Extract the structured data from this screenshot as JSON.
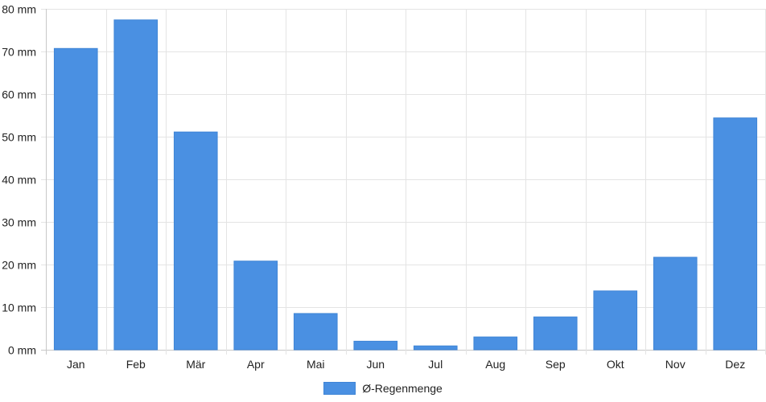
{
  "chart_data": {
    "type": "bar",
    "categories": [
      "Jan",
      "Feb",
      "Mär",
      "Apr",
      "Mai",
      "Jun",
      "Jul",
      "Aug",
      "Sep",
      "Okt",
      "Nov",
      "Dez"
    ],
    "series": [
      {
        "name": "Ø-Regenmenge",
        "values": [
          70.7,
          77.4,
          51.1,
          20.8,
          8.5,
          2.0,
          0.9,
          3.0,
          7.7,
          13.8,
          21.7,
          54.4
        ]
      }
    ],
    "y_ticks": [
      "0 mm",
      "10 mm",
      "20 mm",
      "30 mm",
      "40 mm",
      "50 mm",
      "60 mm",
      "70 mm",
      "80 mm"
    ],
    "ylim": [
      0,
      80
    ],
    "grid": true,
    "legend": "bottom-center",
    "bar_color": "#4a90e2"
  }
}
